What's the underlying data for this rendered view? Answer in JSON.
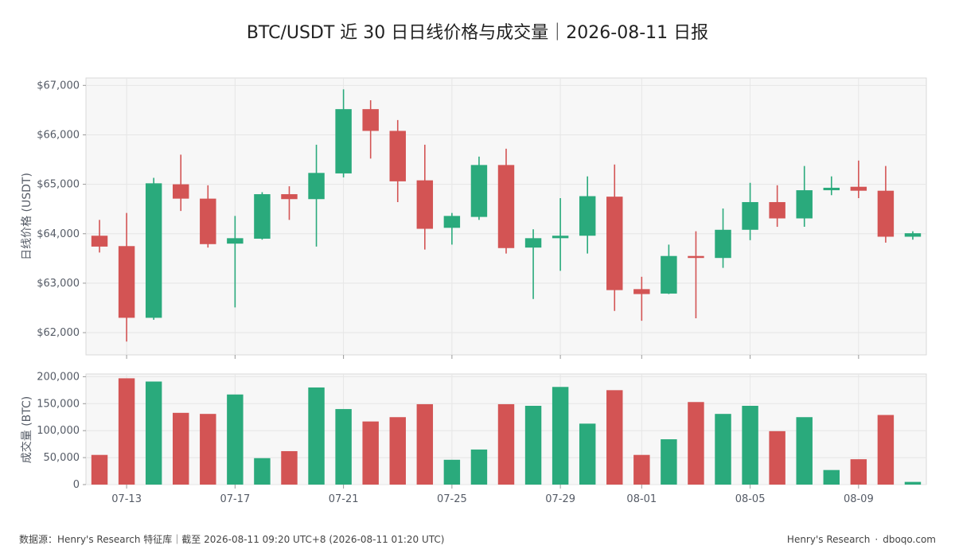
{
  "title": "BTC/USDT 近 30 日日线价格与成交量｜2026-08-11 日报",
  "footer": {
    "source": "数据源：Henry's Research 特征库｜截至 2026-08-11 09:20 UTC+8 (2026-08-11 01:20 UTC)",
    "brand": "Henry's Research",
    "separator": "·",
    "site": "dboqo.com"
  },
  "colors": {
    "up": "#2aaa7c",
    "down": "#d35454",
    "grid": "#e6e6e6",
    "frame": "#d9d9d9",
    "panel_bg": "#f7f7f7"
  },
  "chart_data": [
    {
      "type": "candlestick",
      "ylabel": "日线价格 (USDT)",
      "ylim": [
        61550,
        67150
      ],
      "y_ticks": [
        62000,
        63000,
        64000,
        65000,
        66000,
        67000
      ],
      "y_tick_labels": [
        "$62,000",
        "$63,000",
        "$64,000",
        "$65,000",
        "$66,000",
        "$67,000"
      ],
      "x_tick_labels": [
        "07-13",
        "07-17",
        "07-21",
        "07-25",
        "07-29",
        "08-01",
        "08-05",
        "08-09"
      ],
      "x_tick_dates": [
        "2026-07-13",
        "2026-07-17",
        "2026-07-21",
        "2026-07-25",
        "2026-07-29",
        "2026-08-01",
        "2026-08-05",
        "2026-08-09"
      ],
      "grid": true,
      "candles": [
        {
          "date": "2026-07-12",
          "open": 63960,
          "high": 64280,
          "low": 63620,
          "close": 63740
        },
        {
          "date": "2026-07-13",
          "open": 63750,
          "high": 64420,
          "low": 61820,
          "close": 62300
        },
        {
          "date": "2026-07-14",
          "open": 62300,
          "high": 65130,
          "low": 62260,
          "close": 65020
        },
        {
          "date": "2026-07-15",
          "open": 65000,
          "high": 65600,
          "low": 64460,
          "close": 64710
        },
        {
          "date": "2026-07-16",
          "open": 64710,
          "high": 64980,
          "low": 63720,
          "close": 63790
        },
        {
          "date": "2026-07-17",
          "open": 63800,
          "high": 64360,
          "low": 62510,
          "close": 63910
        },
        {
          "date": "2026-07-18",
          "open": 63900,
          "high": 64840,
          "low": 63880,
          "close": 64800
        },
        {
          "date": "2026-07-19",
          "open": 64800,
          "high": 64960,
          "low": 64280,
          "close": 64700
        },
        {
          "date": "2026-07-20",
          "open": 64700,
          "high": 65800,
          "low": 63740,
          "close": 65230
        },
        {
          "date": "2026-07-21",
          "open": 65220,
          "high": 66920,
          "low": 65140,
          "close": 66520
        },
        {
          "date": "2026-07-22",
          "open": 66520,
          "high": 66700,
          "low": 65520,
          "close": 66080
        },
        {
          "date": "2026-07-23",
          "open": 66080,
          "high": 66300,
          "low": 64640,
          "close": 65060
        },
        {
          "date": "2026-07-24",
          "open": 65080,
          "high": 65800,
          "low": 63680,
          "close": 64100
        },
        {
          "date": "2026-07-25",
          "open": 64120,
          "high": 64420,
          "low": 63780,
          "close": 64360
        },
        {
          "date": "2026-07-26",
          "open": 64340,
          "high": 65560,
          "low": 64280,
          "close": 65390
        },
        {
          "date": "2026-07-27",
          "open": 65390,
          "high": 65720,
          "low": 63600,
          "close": 63710
        },
        {
          "date": "2026-07-28",
          "open": 63720,
          "high": 64090,
          "low": 62680,
          "close": 63910
        },
        {
          "date": "2026-07-29",
          "open": 63910,
          "high": 64720,
          "low": 63250,
          "close": 63960
        },
        {
          "date": "2026-07-30",
          "open": 63960,
          "high": 65160,
          "low": 63600,
          "close": 64760
        },
        {
          "date": "2026-07-31",
          "open": 64750,
          "high": 65400,
          "low": 62440,
          "close": 62860
        },
        {
          "date": "2026-08-01",
          "open": 62880,
          "high": 63130,
          "low": 62240,
          "close": 62780
        },
        {
          "date": "2026-08-02",
          "open": 62790,
          "high": 63780,
          "low": 62780,
          "close": 63550
        },
        {
          "date": "2026-08-03",
          "open": 63550,
          "high": 64050,
          "low": 62290,
          "close": 63510
        },
        {
          "date": "2026-08-04",
          "open": 63510,
          "high": 64510,
          "low": 63310,
          "close": 64080
        },
        {
          "date": "2026-08-05",
          "open": 64080,
          "high": 65030,
          "low": 63870,
          "close": 64640
        },
        {
          "date": "2026-08-06",
          "open": 64640,
          "high": 64980,
          "low": 64140,
          "close": 64310
        },
        {
          "date": "2026-08-07",
          "open": 64310,
          "high": 65370,
          "low": 64140,
          "close": 64880
        },
        {
          "date": "2026-08-08",
          "open": 64880,
          "high": 65160,
          "low": 64780,
          "close": 64930
        },
        {
          "date": "2026-08-09",
          "open": 64950,
          "high": 65480,
          "low": 64720,
          "close": 64870
        },
        {
          "date": "2026-08-10",
          "open": 64870,
          "high": 65370,
          "low": 63820,
          "close": 63940
        },
        {
          "date": "2026-08-11",
          "open": 63940,
          "high": 64050,
          "low": 63880,
          "close": 64010
        }
      ]
    },
    {
      "type": "bar",
      "ylabel": "成交量 (BTC)",
      "ylim": [
        0,
        205000
      ],
      "y_ticks": [
        0,
        50000,
        100000,
        150000,
        200000
      ],
      "y_tick_labels": [
        "0",
        "50,000",
        "100,000",
        "150,000",
        "200,000"
      ],
      "grid": true,
      "volumes": [
        55000,
        197000,
        191000,
        133000,
        131000,
        167000,
        49000,
        62000,
        180000,
        140000,
        117000,
        125000,
        149000,
        46000,
        65000,
        149000,
        146000,
        181000,
        113000,
        175000,
        55000,
        84000,
        153000,
        131000,
        146000,
        99000,
        125000,
        27000,
        47000,
        129000,
        5000
      ]
    }
  ]
}
